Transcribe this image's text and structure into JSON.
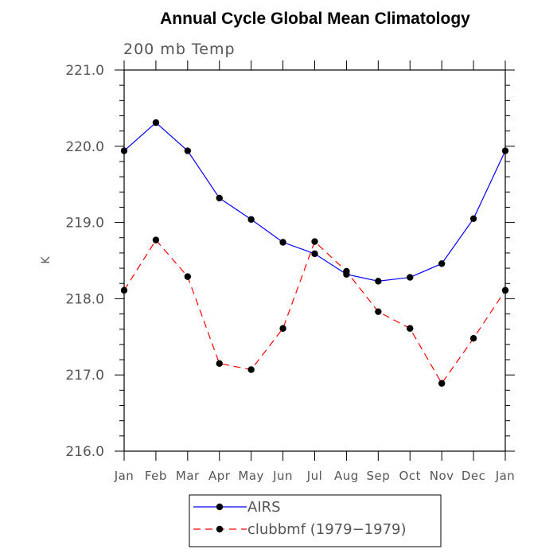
{
  "chart_data": {
    "type": "line",
    "title": "Annual Cycle Global Mean Climatology",
    "subtitle": "200 mb Temp",
    "xlabel": "",
    "ylabel": "K",
    "categories": [
      "Jan",
      "Feb",
      "Mar",
      "Apr",
      "May",
      "Jun",
      "Jul",
      "Aug",
      "Sep",
      "Oct",
      "Nov",
      "Dec",
      "Jan"
    ],
    "ylim": [
      216.0,
      221.0
    ],
    "yticks": [
      "216.0",
      "217.0",
      "218.0",
      "219.0",
      "220.0",
      "221.0"
    ],
    "grid": false,
    "legend_position": "bottom-center",
    "series": [
      {
        "name": "AIRS",
        "color": "#0000ff",
        "dash": "solid",
        "marker": "circle",
        "values": [
          219.94,
          220.31,
          219.94,
          219.32,
          219.04,
          218.74,
          218.59,
          218.32,
          218.23,
          218.28,
          218.46,
          219.05,
          219.94
        ]
      },
      {
        "name": "clubbmf (1979−1979)",
        "color": "#ff0000",
        "dash": "dashed",
        "marker": "circle",
        "values": [
          218.11,
          218.77,
          218.29,
          217.15,
          217.07,
          217.61,
          218.75,
          218.36,
          217.83,
          217.61,
          216.89,
          217.48,
          218.11
        ]
      }
    ]
  }
}
